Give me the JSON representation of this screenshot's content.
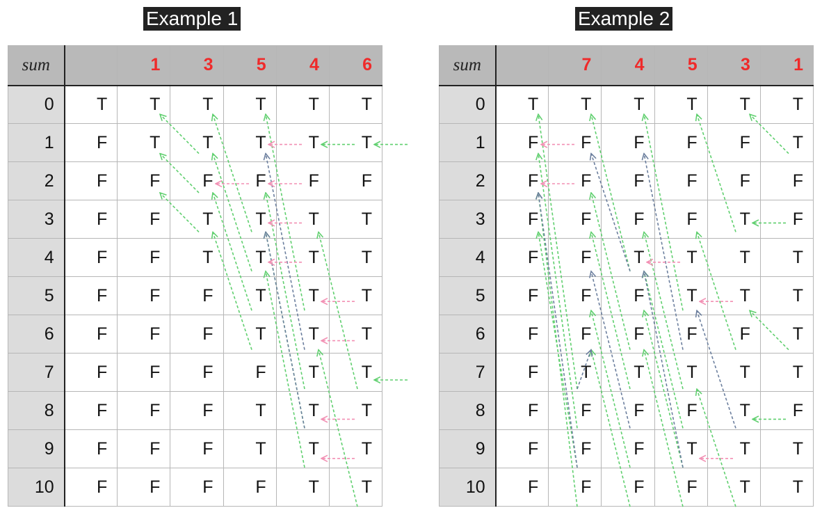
{
  "examples": [
    {
      "title": "Example 1",
      "sum_label": "sum",
      "values": [
        "1",
        "3",
        "5",
        "4",
        "6"
      ],
      "row_labels": [
        "0",
        "1",
        "2",
        "3",
        "4",
        "5",
        "6",
        "7",
        "8",
        "9",
        "10"
      ],
      "cells": [
        [
          "T",
          "T",
          "T",
          "T",
          "T",
          "T"
        ],
        [
          "F",
          "T",
          "T",
          "T",
          "T",
          "T"
        ],
        [
          "F",
          "F",
          "F",
          "F",
          "F",
          "F"
        ],
        [
          "F",
          "F",
          "T",
          "T",
          "T",
          "T"
        ],
        [
          "F",
          "F",
          "T",
          "T",
          "T",
          "T"
        ],
        [
          "F",
          "F",
          "F",
          "T",
          "T",
          "T"
        ],
        [
          "F",
          "F",
          "F",
          "T",
          "T",
          "T"
        ],
        [
          "F",
          "F",
          "F",
          "F",
          "T",
          "T"
        ],
        [
          "F",
          "F",
          "F",
          "T",
          "T",
          "T"
        ],
        [
          "F",
          "F",
          "F",
          "T",
          "T",
          "T"
        ],
        [
          "F",
          "F",
          "F",
          "F",
          "T",
          "T"
        ]
      ],
      "arrows": [
        {
          "type": "green",
          "from": [
            1,
            2
          ],
          "to": [
            0,
            1
          ]
        },
        {
          "type": "green",
          "from": [
            2,
            2
          ],
          "to": [
            1,
            1
          ]
        },
        {
          "type": "green",
          "from": [
            3,
            2
          ],
          "to": [
            2,
            1
          ]
        },
        {
          "type": "green",
          "from": [
            3,
            3
          ],
          "to": [
            0,
            2
          ]
        },
        {
          "type": "green",
          "from": [
            4,
            3
          ],
          "to": [
            1,
            2
          ]
        },
        {
          "type": "green",
          "from": [
            5,
            3
          ],
          "to": [
            2,
            2
          ]
        },
        {
          "type": "green",
          "from": [
            6,
            3
          ],
          "to": [
            3,
            2
          ]
        },
        {
          "type": "green",
          "from": [
            5,
            4
          ],
          "to": [
            0,
            3
          ]
        },
        {
          "type": "green",
          "from": [
            7,
            4
          ],
          "to": [
            2,
            3
          ]
        },
        {
          "type": "green",
          "from": [
            8,
            4
          ],
          "to": [
            3,
            3
          ]
        },
        {
          "type": "green",
          "from": [
            9,
            4
          ],
          "to": [
            4,
            3
          ]
        },
        {
          "type": "green",
          "from": [
            7,
            5
          ],
          "to": [
            3,
            4
          ]
        },
        {
          "type": "green",
          "from": [
            10,
            5
          ],
          "to": [
            6,
            4
          ]
        },
        {
          "type": "green",
          "from": [
            1,
            6
          ],
          "to": [
            1,
            5
          ]
        },
        {
          "type": "green",
          "from": [
            7,
            6
          ],
          "to": [
            7,
            5
          ]
        },
        {
          "type": "green",
          "from": [
            1,
            5
          ],
          "to": [
            1,
            4
          ]
        },
        {
          "type": "navy",
          "from": [
            6,
            4
          ],
          "to": [
            1,
            3
          ]
        },
        {
          "type": "navy",
          "from": [
            8,
            4
          ],
          "to": [
            3,
            3
          ]
        },
        {
          "type": "pink",
          "from": [
            1,
            4
          ],
          "to": [
            1,
            3
          ]
        },
        {
          "type": "pink",
          "from": [
            2,
            3
          ],
          "to": [
            2,
            2
          ]
        },
        {
          "type": "pink",
          "from": [
            2,
            4
          ],
          "to": [
            2,
            3
          ]
        },
        {
          "type": "pink",
          "from": [
            3,
            4
          ],
          "to": [
            3,
            3
          ]
        },
        {
          "type": "pink",
          "from": [
            4,
            4
          ],
          "to": [
            4,
            3
          ]
        },
        {
          "type": "pink",
          "from": [
            5,
            5
          ],
          "to": [
            5,
            4
          ]
        },
        {
          "type": "pink",
          "from": [
            6,
            5
          ],
          "to": [
            6,
            4
          ]
        },
        {
          "type": "pink",
          "from": [
            8,
            5
          ],
          "to": [
            8,
            4
          ]
        },
        {
          "type": "pink",
          "from": [
            9,
            5
          ],
          "to": [
            9,
            4
          ]
        }
      ]
    },
    {
      "title": "Example 2",
      "sum_label": "sum",
      "values": [
        "7",
        "4",
        "5",
        "3",
        "1"
      ],
      "row_labels": [
        "0",
        "1",
        "2",
        "3",
        "4",
        "5",
        "6",
        "7",
        "8",
        "9",
        "10"
      ],
      "cells": [
        [
          "T",
          "T",
          "T",
          "T",
          "T",
          "T"
        ],
        [
          "F",
          "F",
          "F",
          "F",
          "F",
          "T"
        ],
        [
          "F",
          "F",
          "F",
          "F",
          "F",
          "F"
        ],
        [
          "F",
          "F",
          "F",
          "F",
          "T",
          "F"
        ],
        [
          "F",
          "F",
          "T",
          "T",
          "T",
          "T"
        ],
        [
          "F",
          "F",
          "F",
          "T",
          "T",
          "T"
        ],
        [
          "F",
          "F",
          "F",
          "F",
          "F",
          "T"
        ],
        [
          "F",
          "T",
          "T",
          "T",
          "T",
          "T"
        ],
        [
          "F",
          "F",
          "F",
          "F",
          "T",
          "F"
        ],
        [
          "F",
          "F",
          "F",
          "T",
          "T",
          "T"
        ],
        [
          "F",
          "F",
          "F",
          "F",
          "T",
          "T"
        ]
      ],
      "arrows": [
        {
          "type": "green",
          "from": [
            7,
            1
          ],
          "to": [
            0,
            0
          ]
        },
        {
          "type": "green",
          "from": [
            8,
            1
          ],
          "to": [
            1,
            0
          ]
        },
        {
          "type": "green",
          "from": [
            9,
            1
          ],
          "to": [
            3,
            0
          ]
        },
        {
          "type": "green",
          "from": [
            10,
            1
          ],
          "to": [
            2,
            0
          ]
        },
        {
          "type": "green",
          "from": [
            4,
            2
          ],
          "to": [
            0,
            1
          ]
        },
        {
          "type": "green",
          "from": [
            6,
            2
          ],
          "to": [
            2,
            1
          ]
        },
        {
          "type": "green",
          "from": [
            7,
            2
          ],
          "to": [
            3,
            1
          ]
        },
        {
          "type": "green",
          "from": [
            9,
            2
          ],
          "to": [
            5,
            1
          ]
        },
        {
          "type": "green",
          "from": [
            10,
            2
          ],
          "to": [
            6,
            1
          ]
        },
        {
          "type": "green",
          "from": [
            5,
            3
          ],
          "to": [
            0,
            2
          ]
        },
        {
          "type": "green",
          "from": [
            7,
            3
          ],
          "to": [
            3,
            2
          ]
        },
        {
          "type": "green",
          "from": [
            8,
            3
          ],
          "to": [
            4,
            2
          ]
        },
        {
          "type": "green",
          "from": [
            9,
            3
          ],
          "to": [
            5,
            2
          ]
        },
        {
          "type": "green",
          "from": [
            10,
            3
          ],
          "to": [
            6,
            2
          ]
        },
        {
          "type": "green",
          "from": [
            3,
            4
          ],
          "to": [
            0,
            3
          ]
        },
        {
          "type": "green",
          "from": [
            6,
            4
          ],
          "to": [
            3,
            3
          ]
        },
        {
          "type": "green",
          "from": [
            10,
            4
          ],
          "to": [
            7,
            3
          ]
        },
        {
          "type": "green",
          "from": [
            1,
            5
          ],
          "to": [
            0,
            4
          ]
        },
        {
          "type": "green",
          "from": [
            6,
            5
          ],
          "to": [
            5,
            4
          ]
        },
        {
          "type": "green",
          "from": [
            3,
            5
          ],
          "to": [
            3,
            4
          ]
        },
        {
          "type": "green",
          "from": [
            8,
            5
          ],
          "to": [
            8,
            4
          ]
        },
        {
          "type": "navy",
          "from": [
            9,
            1
          ],
          "to": [
            2,
            0
          ]
        },
        {
          "type": "navy",
          "from": [
            4,
            2
          ],
          "to": [
            1,
            1
          ]
        },
        {
          "type": "navy",
          "from": [
            8,
            2
          ],
          "to": [
            4,
            1
          ]
        },
        {
          "type": "navy",
          "from": [
            7,
            1
          ],
          "to": [
            6,
            1
          ]
        },
        {
          "type": "navy",
          "from": [
            6,
            3
          ],
          "to": [
            1,
            2
          ]
        },
        {
          "type": "navy",
          "from": [
            9,
            3
          ],
          "to": [
            4,
            2
          ]
        },
        {
          "type": "navy",
          "from": [
            8,
            4
          ],
          "to": [
            5,
            3
          ]
        },
        {
          "type": "pink",
          "from": [
            1,
            1
          ],
          "to": [
            1,
            0
          ]
        },
        {
          "type": "pink",
          "from": [
            2,
            1
          ],
          "to": [
            2,
            0
          ]
        },
        {
          "type": "pink",
          "from": [
            4,
            3
          ],
          "to": [
            4,
            2
          ]
        },
        {
          "type": "pink",
          "from": [
            5,
            4
          ],
          "to": [
            5,
            3
          ]
        },
        {
          "type": "pink",
          "from": [
            9,
            4
          ],
          "to": [
            9,
            3
          ]
        }
      ]
    }
  ],
  "colors": {
    "green": "#5fcf6e",
    "pink": "#f28fb3",
    "navy": "#6c7f9e",
    "header_value": "#ef2a2a"
  }
}
